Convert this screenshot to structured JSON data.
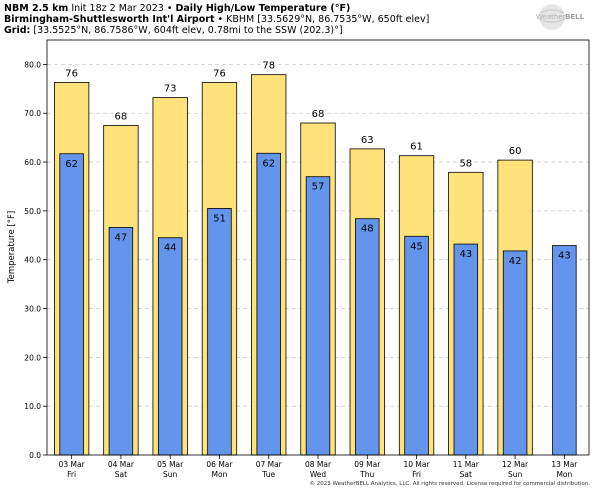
{
  "header": {
    "model": "NBM 2.5 km",
    "init": "Init 18z 2 Mar 2023",
    "sep": "•",
    "product": "Daily High/Low Temperature (°F)",
    "station_name": "Birmingham-Shuttlesworth Int'l Airport",
    "station_info": "KBHM [33.5629°N, 86.7535°W, 650ft elev]",
    "grid_label": "Grid:",
    "grid_info": "[33.5525°N, 86.7586°W, 604ft elev, 0.78mi to the SSW (202.3)°]"
  },
  "logo": {
    "line1": "Weather",
    "line2": "BELL"
  },
  "copyright": "© 2023 WeatherBELL Analytics, LLC. All rights reserved. License required for commercial distribution.",
  "colors": {
    "high": "#FFE27A",
    "low": "#6495ED",
    "grid": "#cccccc",
    "axes_bg": "#ffffff"
  },
  "chart_data": {
    "type": "bar",
    "ylabel": "Temperature [°F]",
    "ylim": [
      0,
      85
    ],
    "yticks": [
      "0.0",
      "10.0",
      "20.0",
      "30.0",
      "40.0",
      "50.0",
      "60.0",
      "70.0",
      "80.0"
    ],
    "grid": true,
    "categories": [
      {
        "date": "03 Mar",
        "day": "Fri"
      },
      {
        "date": "04 Mar",
        "day": "Sat"
      },
      {
        "date": "05 Mar",
        "day": "Sun"
      },
      {
        "date": "06 Mar",
        "day": "Mon"
      },
      {
        "date": "07 Mar",
        "day": "Tue"
      },
      {
        "date": "08 Mar",
        "day": "Wed"
      },
      {
        "date": "09 Mar",
        "day": "Thu"
      },
      {
        "date": "10 Mar",
        "day": "Fri"
      },
      {
        "date": "11 Mar",
        "day": "Sat"
      },
      {
        "date": "12 Mar",
        "day": "Sun"
      },
      {
        "date": "13 Mar",
        "day": "Mon"
      }
    ],
    "series": [
      {
        "key": "high",
        "values": [
          76.3,
          67.5,
          73.2,
          76.3,
          77.9,
          68.0,
          62.7,
          61.3,
          57.9,
          60.4,
          null
        ],
        "labels": [
          "76",
          "68",
          "73",
          "76",
          "78",
          "68",
          "63",
          "61",
          "58",
          "60",
          ""
        ]
      },
      {
        "key": "low",
        "values": [
          61.7,
          46.6,
          44.5,
          50.5,
          61.8,
          57.0,
          48.4,
          44.8,
          43.2,
          41.8,
          42.9
        ],
        "labels": [
          "62",
          "47",
          "44",
          "51",
          "62",
          "57",
          "48",
          "45",
          "43",
          "42",
          "43"
        ]
      }
    ]
  }
}
